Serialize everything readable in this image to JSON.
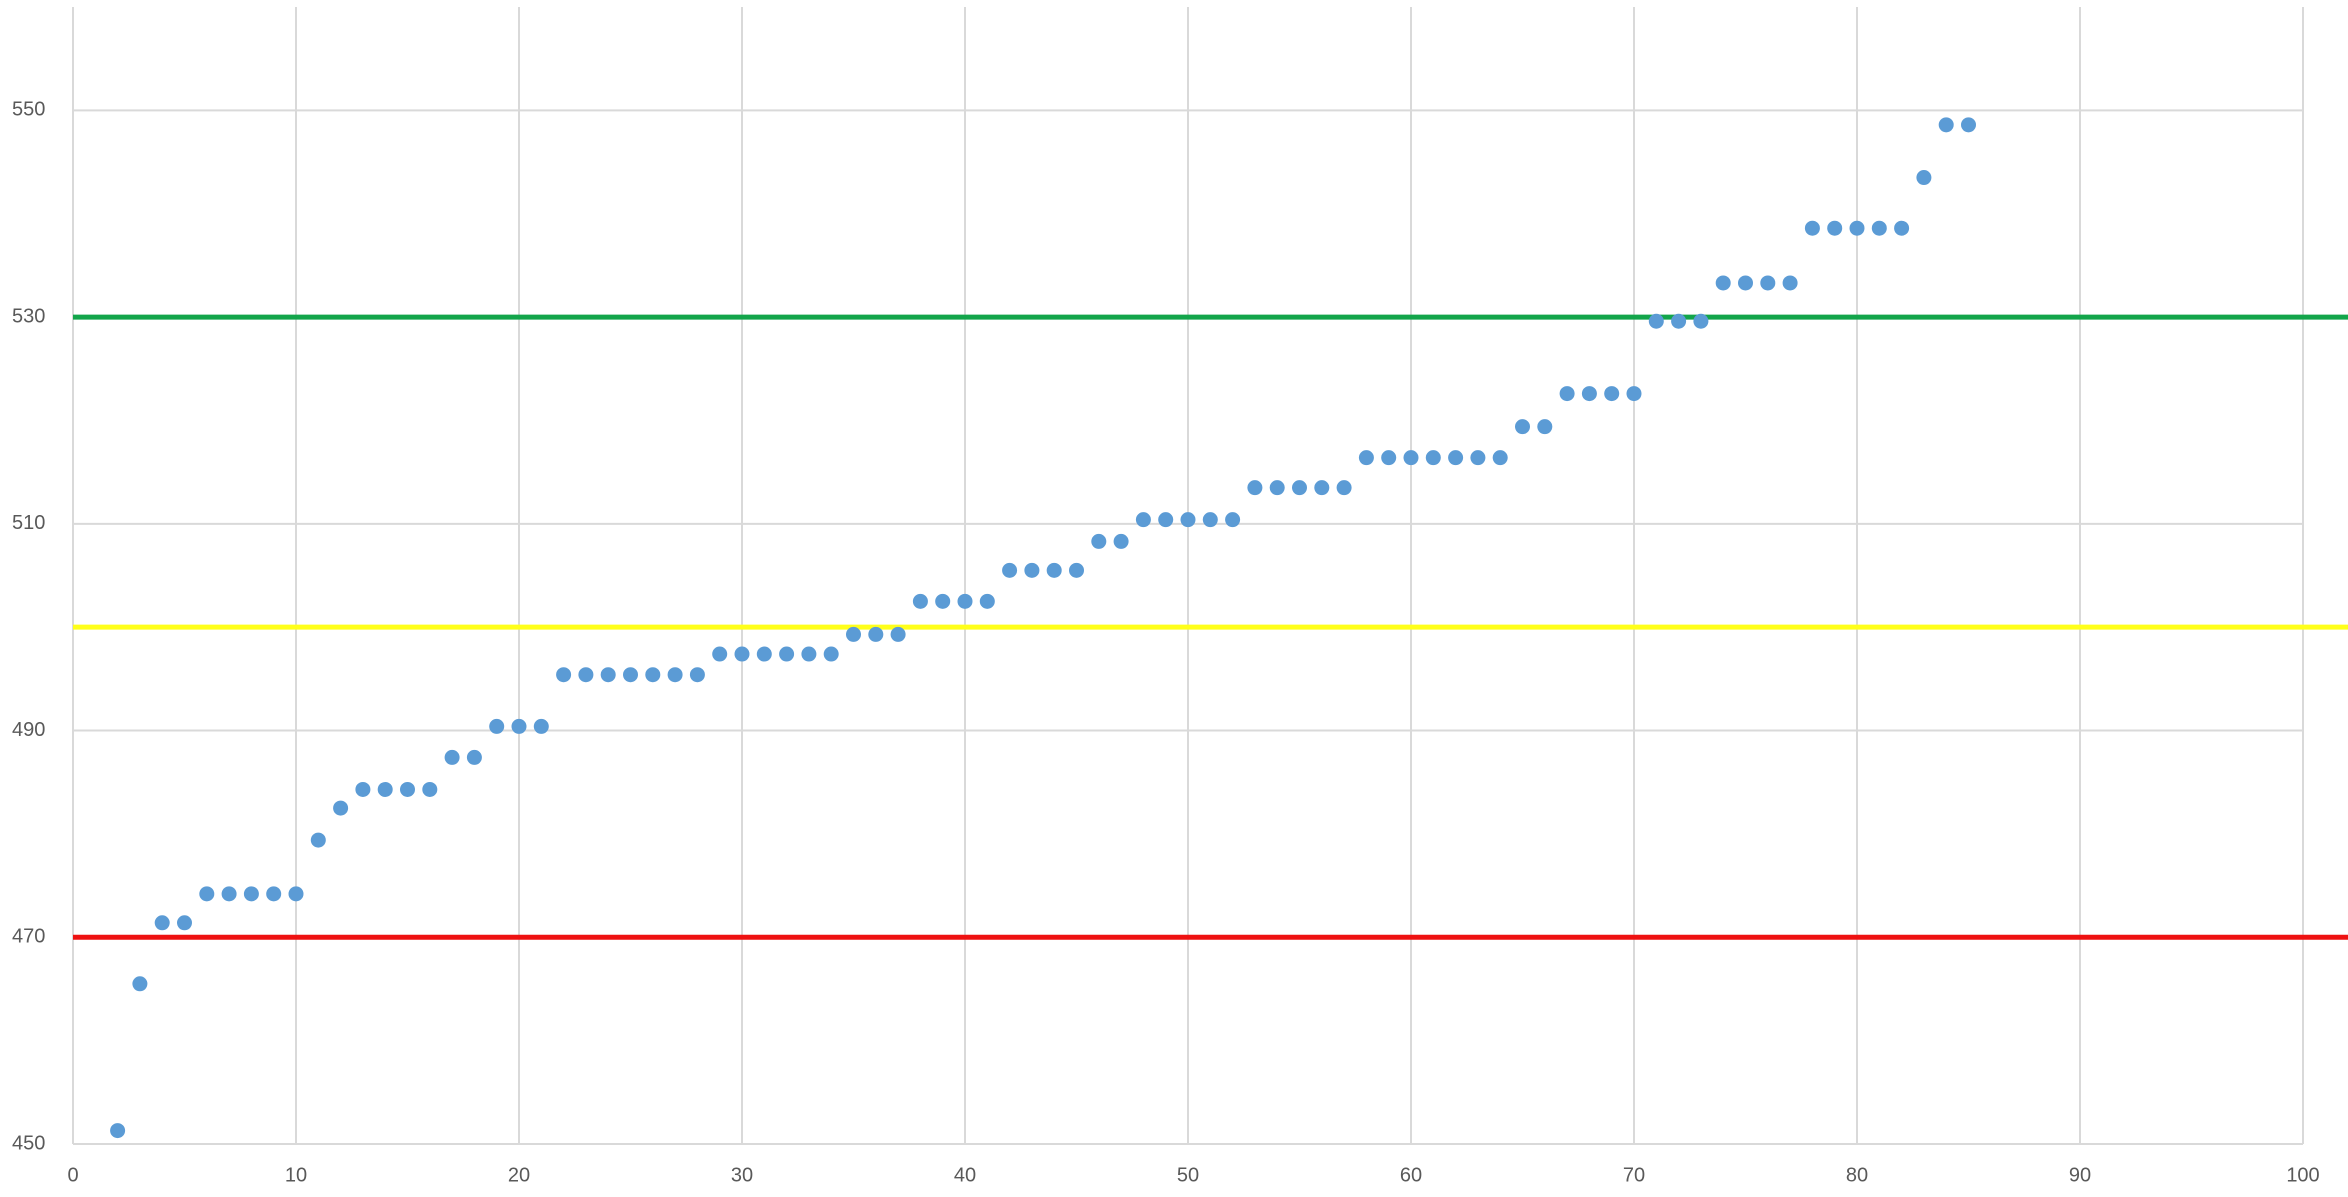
{
  "chart_data": {
    "type": "scatter",
    "x": [
      2,
      3,
      4,
      5,
      6,
      7,
      8,
      9,
      10,
      11,
      12,
      13,
      14,
      15,
      16,
      17,
      18,
      19,
      20,
      21,
      22,
      23,
      24,
      25,
      26,
      27,
      28,
      29,
      30,
      31,
      32,
      33,
      34,
      35,
      36,
      37,
      38,
      39,
      40,
      41,
      42,
      43,
      44,
      45,
      46,
      47,
      48,
      49,
      50,
      51,
      52,
      53,
      54,
      55,
      56,
      57,
      58,
      59,
      60,
      61,
      62,
      63,
      64,
      65,
      66,
      67,
      68,
      69,
      70,
      71,
      72,
      73,
      74,
      75,
      76,
      77,
      78,
      79,
      80,
      81,
      82,
      83,
      84,
      85
    ],
    "series": [
      {
        "color": "#5b9bd5",
        "values": [
          451.3,
          465.5,
          471.4,
          471.4,
          474.2,
          474.2,
          474.2,
          474.2,
          474.2,
          479.4,
          482.5,
          484.3,
          484.3,
          484.3,
          484.3,
          487.4,
          487.4,
          490.4,
          490.4,
          490.4,
          495.4,
          495.4,
          495.4,
          495.4,
          495.4,
          495.4,
          495.4,
          497.4,
          497.4,
          497.4,
          497.4,
          497.4,
          497.4,
          499.3,
          499.3,
          499.3,
          502.5,
          502.5,
          502.5,
          502.5,
          505.5,
          505.5,
          505.5,
          505.5,
          508.3,
          508.3,
          510.4,
          510.4,
          510.4,
          510.4,
          510.4,
          513.5,
          513.5,
          513.5,
          513.5,
          513.5,
          516.4,
          516.4,
          516.4,
          516.4,
          516.4,
          516.4,
          516.4,
          519.4,
          519.4,
          522.6,
          522.6,
          522.6,
          522.6,
          529.6,
          529.6,
          529.6,
          533.3,
          533.3,
          533.3,
          533.3,
          538.6,
          538.6,
          538.6,
          538.6,
          538.6,
          543.5,
          548.6,
          548.6
        ]
      }
    ],
    "reference_lines": [
      {
        "value": 530,
        "color": "#12a54a"
      },
      {
        "value": 500,
        "color": "#ffff1a"
      },
      {
        "value": 470,
        "color": "#ee1111"
      }
    ],
    "xlim": [
      0,
      100
    ],
    "xticks": [
      0,
      10,
      20,
      30,
      40,
      50,
      60,
      70,
      80,
      90,
      100
    ],
    "ylim": [
      450,
      560
    ],
    "yticks": [
      450,
      470,
      490,
      510,
      530,
      550
    ],
    "grid": true
  }
}
